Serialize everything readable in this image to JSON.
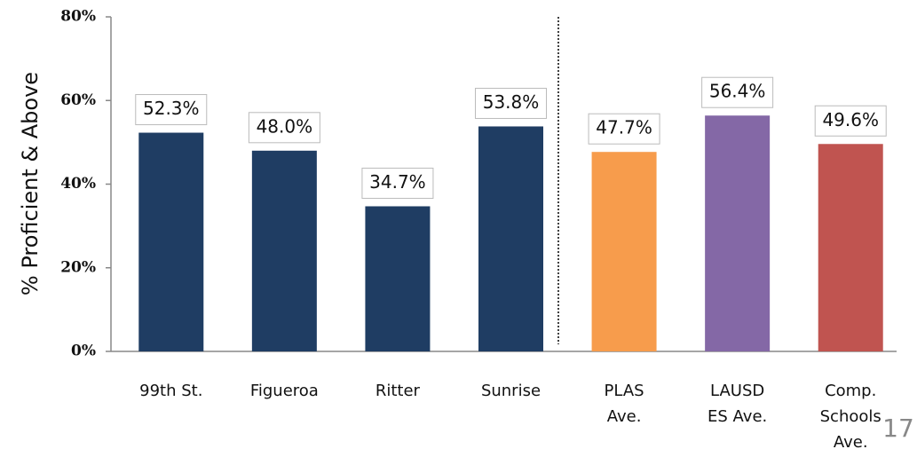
{
  "chart_data": {
    "type": "bar",
    "ylabel": "% Proficient & Above",
    "categories": [
      "99th St.",
      "Figueroa",
      "Ritter",
      "Sunrise",
      "PLAS Ave.",
      "LAUSD ES Ave.",
      "Comp. Schools Ave."
    ],
    "values": [
      52.3,
      48.0,
      34.7,
      53.8,
      47.7,
      56.4,
      49.6
    ],
    "value_labels": [
      "52.3%",
      "48.0%",
      "34.7%",
      "53.8%",
      "47.7%",
      "56.4%",
      "49.6%"
    ],
    "colors": [
      "#1f3d63",
      "#1f3d63",
      "#1f3d63",
      "#1f3d63",
      "#f79c4c",
      "#8468a6",
      "#c05450"
    ],
    "ylim": [
      0,
      80
    ],
    "yticks": [
      {
        "value": 0,
        "label": "0%"
      },
      {
        "value": 20,
        "label": "20%"
      },
      {
        "value": 40,
        "label": "40%"
      },
      {
        "value": 60,
        "label": "60%"
      },
      {
        "value": 80,
        "label": "80%"
      }
    ],
    "grid": false
  },
  "page_number": "17"
}
